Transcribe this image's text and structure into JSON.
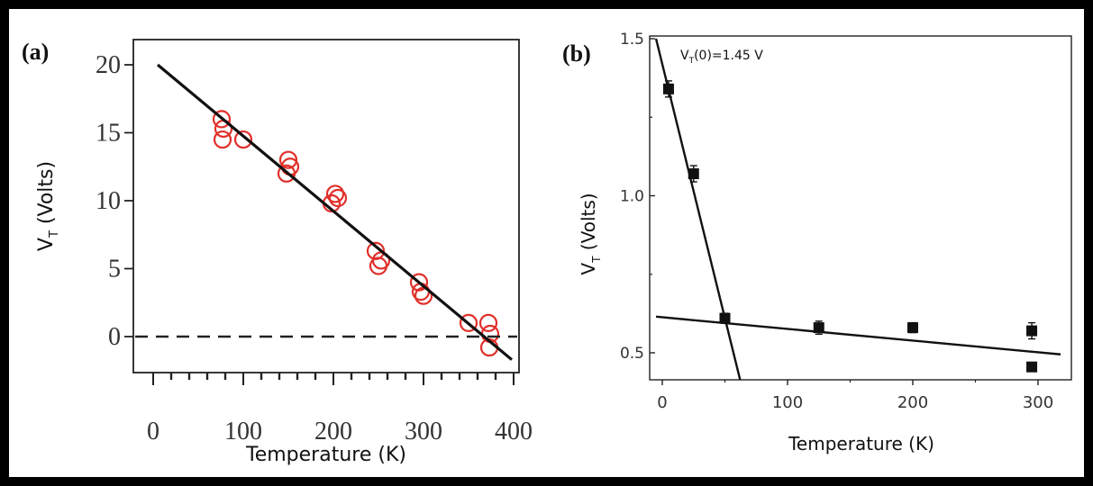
{
  "chart_data": [
    {
      "type": "scatter",
      "panel_label": "(a)",
      "xlabel": "Temperature (K)",
      "ylabel_main": "V",
      "ylabel_sub": "T",
      "ylabel_rest": " (Volts)",
      "xlim": [
        0,
        400
      ],
      "ylim": [
        -3,
        22
      ],
      "xticks": [
        "0",
        "100",
        "200",
        "300",
        "400"
      ],
      "yticks": [
        "0",
        "5",
        "10",
        "15",
        "20"
      ],
      "points": [
        {
          "x": 76,
          "y": 16.0
        },
        {
          "x": 78,
          "y": 15.3
        },
        {
          "x": 77,
          "y": 14.5
        },
        {
          "x": 100,
          "y": 14.5
        },
        {
          "x": 150,
          "y": 13.0
        },
        {
          "x": 148,
          "y": 12.0
        },
        {
          "x": 152,
          "y": 12.5
        },
        {
          "x": 198,
          "y": 9.8
        },
        {
          "x": 202,
          "y": 10.5
        },
        {
          "x": 205,
          "y": 10.2
        },
        {
          "x": 247,
          "y": 6.3
        },
        {
          "x": 250,
          "y": 5.2
        },
        {
          "x": 253,
          "y": 5.6
        },
        {
          "x": 295,
          "y": 4.0
        },
        {
          "x": 297,
          "y": 3.3
        },
        {
          "x": 300,
          "y": 3.0
        },
        {
          "x": 350,
          "y": 1.0
        },
        {
          "x": 372,
          "y": 1.0
        },
        {
          "x": 374,
          "y": 0.2
        },
        {
          "x": 373,
          "y": -0.8
        }
      ],
      "fit_line": [
        {
          "x": 5,
          "y": 20.0
        },
        {
          "x": 398,
          "y": -1.7
        }
      ],
      "reference_line_y": 0
    },
    {
      "type": "scatter",
      "panel_label": "(b)",
      "annotation_main": "V",
      "annotation_sub": "T",
      "annotation_rest": "(0)=1.45 V",
      "xlabel": "Temperature (K)",
      "ylabel_main": "V",
      "ylabel_sub": "T",
      "ylabel_rest": " (Volts)",
      "xlim": [
        -5,
        318
      ],
      "ylim": [
        0.4,
        1.5
      ],
      "xticks": [
        "0",
        "100",
        "200",
        "300"
      ],
      "yticks": [
        "0.5",
        "1.0",
        "1.5"
      ],
      "points": [
        {
          "x": 5,
          "y": 1.34,
          "err": 0.02
        },
        {
          "x": 25,
          "y": 1.07,
          "err": 0.02
        },
        {
          "x": 50,
          "y": 0.61,
          "err": 0.01
        },
        {
          "x": 125,
          "y": 0.58,
          "err": 0.015
        },
        {
          "x": 200,
          "y": 0.58,
          "err": 0.01
        },
        {
          "x": 295,
          "y": 0.57,
          "err": 0.02
        },
        {
          "x": 295,
          "y": 0.455,
          "err": 0
        }
      ],
      "fit_lines": [
        [
          {
            "x": -5,
            "y": 1.5
          },
          {
            "x": 63,
            "y": 0.4
          }
        ],
        [
          {
            "x": -5,
            "y": 0.615
          },
          {
            "x": 318,
            "y": 0.495
          }
        ]
      ]
    }
  ]
}
